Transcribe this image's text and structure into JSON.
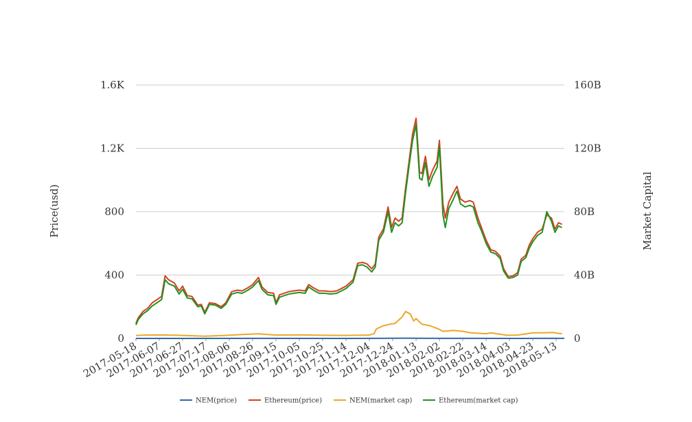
{
  "chart_data": {
    "type": "line",
    "title": "",
    "x_dates": [
      "2017-05-18",
      "2017-06-07",
      "2017-06-27",
      "2017-07-17",
      "2017-08-06",
      "2017-08-26",
      "2017-09-15",
      "2017-10-05",
      "2017-10-25",
      "2017-11-14",
      "2017-12-04",
      "2017-12-24",
      "2018-01-13",
      "2018-02-02",
      "2018-02-22",
      "2018-03-14",
      "2018-04-03",
      "2018-04-23",
      "2018-05-13"
    ],
    "x_range": [
      "2017-05-18",
      "2018-05-20"
    ],
    "left_axis": {
      "label": "Price(usd)",
      "ylim": [
        0,
        1600
      ],
      "ticks": [
        0,
        400,
        800,
        1200,
        1600
      ],
      "tick_labels": [
        "0",
        "400",
        "800",
        "1.2K",
        "1.6K"
      ]
    },
    "right_axis": {
      "label": "Market Capital",
      "ylim": [
        0,
        160
      ],
      "unit": "B",
      "ticks": [
        0,
        40,
        80,
        120,
        160
      ],
      "tick_labels": [
        "0",
        "40B",
        "80B",
        "120B",
        "160B"
      ]
    },
    "grid": true,
    "legend_position": "bottom",
    "series": [
      {
        "name": "NEM(price)",
        "axis": "left",
        "color": "#2f6aa6",
        "points": [
          [
            "2017-05-18",
            0.2
          ],
          [
            "2017-07-01",
            0.18
          ],
          [
            "2017-09-01",
            0.3
          ],
          [
            "2017-11-01",
            0.2
          ],
          [
            "2017-12-10",
            0.3
          ],
          [
            "2017-12-24",
            0.9
          ],
          [
            "2018-01-05",
            1.6
          ],
          [
            "2018-01-13",
            1.3
          ],
          [
            "2018-02-02",
            0.6
          ],
          [
            "2018-03-01",
            0.4
          ],
          [
            "2018-04-06",
            0.2
          ],
          [
            "2018-05-01",
            0.4
          ],
          [
            "2018-05-20",
            0.3
          ]
        ]
      },
      {
        "name": "Ethereum(price)",
        "axis": "left",
        "color": "#d4411f",
        "points": [
          [
            "2017-05-18",
            95
          ],
          [
            "2017-05-20",
            130
          ],
          [
            "2017-05-24",
            170
          ],
          [
            "2017-05-28",
            190
          ],
          [
            "2017-06-01",
            225
          ],
          [
            "2017-06-06",
            250
          ],
          [
            "2017-06-09",
            265
          ],
          [
            "2017-06-12",
            395
          ],
          [
            "2017-06-15",
            370
          ],
          [
            "2017-06-20",
            350
          ],
          [
            "2017-06-24",
            300
          ],
          [
            "2017-06-27",
            330
          ],
          [
            "2017-07-01",
            270
          ],
          [
            "2017-07-05",
            265
          ],
          [
            "2017-07-10",
            210
          ],
          [
            "2017-07-13",
            215
          ],
          [
            "2017-07-16",
            165
          ],
          [
            "2017-07-20",
            225
          ],
          [
            "2017-07-25",
            220
          ],
          [
            "2017-07-30",
            200
          ],
          [
            "2017-08-03",
            225
          ],
          [
            "2017-08-08",
            295
          ],
          [
            "2017-08-13",
            305
          ],
          [
            "2017-08-17",
            300
          ],
          [
            "2017-08-22",
            320
          ],
          [
            "2017-08-26",
            340
          ],
          [
            "2017-08-31",
            385
          ],
          [
            "2017-09-03",
            325
          ],
          [
            "2017-09-08",
            290
          ],
          [
            "2017-09-13",
            285
          ],
          [
            "2017-09-15",
            225
          ],
          [
            "2017-09-18",
            275
          ],
          [
            "2017-09-22",
            285
          ],
          [
            "2017-09-26",
            295
          ],
          [
            "2017-09-30",
            300
          ],
          [
            "2017-10-05",
            305
          ],
          [
            "2017-10-10",
            300
          ],
          [
            "2017-10-13",
            340
          ],
          [
            "2017-10-17",
            320
          ],
          [
            "2017-10-22",
            300
          ],
          [
            "2017-10-27",
            300
          ],
          [
            "2017-11-01",
            295
          ],
          [
            "2017-11-06",
            300
          ],
          [
            "2017-11-10",
            315
          ],
          [
            "2017-11-14",
            330
          ],
          [
            "2017-11-20",
            370
          ],
          [
            "2017-11-24",
            475
          ],
          [
            "2017-11-28",
            480
          ],
          [
            "2017-12-02",
            470
          ],
          [
            "2017-12-06",
            440
          ],
          [
            "2017-12-09",
            470
          ],
          [
            "2017-12-12",
            640
          ],
          [
            "2017-12-16",
            690
          ],
          [
            "2017-12-20",
            830
          ],
          [
            "2017-12-23",
            700
          ],
          [
            "2017-12-26",
            760
          ],
          [
            "2017-12-29",
            740
          ],
          [
            "2018-01-01",
            760
          ],
          [
            "2018-01-04",
            950
          ],
          [
            "2018-01-07",
            1120
          ],
          [
            "2018-01-10",
            1290
          ],
          [
            "2018-01-13",
            1390
          ],
          [
            "2018-01-16",
            1050
          ],
          [
            "2018-01-18",
            1040
          ],
          [
            "2018-01-21",
            1150
          ],
          [
            "2018-01-24",
            1000
          ],
          [
            "2018-01-27",
            1060
          ],
          [
            "2018-01-31",
            1120
          ],
          [
            "2018-02-02",
            1250
          ],
          [
            "2018-02-05",
            850
          ],
          [
            "2018-02-07",
            760
          ],
          [
            "2018-02-10",
            860
          ],
          [
            "2018-02-14",
            920
          ],
          [
            "2018-02-17",
            960
          ],
          [
            "2018-02-20",
            880
          ],
          [
            "2018-02-24",
            860
          ],
          [
            "2018-02-28",
            870
          ],
          [
            "2018-03-03",
            860
          ],
          [
            "2018-03-07",
            760
          ],
          [
            "2018-03-10",
            700
          ],
          [
            "2018-03-14",
            620
          ],
          [
            "2018-03-18",
            560
          ],
          [
            "2018-03-22",
            550
          ],
          [
            "2018-03-26",
            520
          ],
          [
            "2018-03-29",
            440
          ],
          [
            "2018-04-02",
            390
          ],
          [
            "2018-04-06",
            395
          ],
          [
            "2018-04-10",
            415
          ],
          [
            "2018-04-13",
            500
          ],
          [
            "2018-04-17",
            525
          ],
          [
            "2018-04-20",
            590
          ],
          [
            "2018-04-23",
            630
          ],
          [
            "2018-04-27",
            670
          ],
          [
            "2018-05-01",
            690
          ],
          [
            "2018-05-05",
            780
          ],
          [
            "2018-05-09",
            760
          ],
          [
            "2018-05-12",
            690
          ],
          [
            "2018-05-15",
            730
          ],
          [
            "2018-05-18",
            720
          ]
        ]
      },
      {
        "name": "NEM(market cap)",
        "axis": "right",
        "color": "#eca727",
        "points": [
          [
            "2017-05-18",
            1.8
          ],
          [
            "2017-05-25",
            2.1
          ],
          [
            "2017-06-10",
            2.2
          ],
          [
            "2017-06-27",
            1.9
          ],
          [
            "2017-07-16",
            1.4
          ],
          [
            "2017-08-01",
            1.8
          ],
          [
            "2017-08-20",
            2.6
          ],
          [
            "2017-08-31",
            2.9
          ],
          [
            "2017-09-15",
            2.1
          ],
          [
            "2017-10-05",
            2.2
          ],
          [
            "2017-10-25",
            2.0
          ],
          [
            "2017-11-14",
            1.9
          ],
          [
            "2017-12-04",
            2.1
          ],
          [
            "2017-12-08",
            3.0
          ],
          [
            "2017-12-10",
            6.0
          ],
          [
            "2017-12-16",
            8.0
          ],
          [
            "2017-12-22",
            9.0
          ],
          [
            "2017-12-26",
            9.5
          ],
          [
            "2018-01-01",
            13.5
          ],
          [
            "2018-01-04",
            17.0
          ],
          [
            "2018-01-08",
            15.5
          ],
          [
            "2018-01-11",
            11.0
          ],
          [
            "2018-01-13",
            12.5
          ],
          [
            "2018-01-18",
            9.0
          ],
          [
            "2018-01-25",
            8.0
          ],
          [
            "2018-02-01",
            6.0
          ],
          [
            "2018-02-05",
            4.5
          ],
          [
            "2018-02-14",
            5.0
          ],
          [
            "2018-02-22",
            4.5
          ],
          [
            "2018-03-01",
            3.5
          ],
          [
            "2018-03-14",
            3.0
          ],
          [
            "2018-03-18",
            3.5
          ],
          [
            "2018-04-01",
            2.0
          ],
          [
            "2018-04-10",
            2.1
          ],
          [
            "2018-04-23",
            3.5
          ],
          [
            "2018-05-01",
            3.6
          ],
          [
            "2018-05-10",
            3.7
          ],
          [
            "2018-05-15",
            3.2
          ],
          [
            "2018-05-18",
            3.0
          ]
        ]
      },
      {
        "name": "Ethereum(market cap)",
        "axis": "right",
        "color": "#239121",
        "points": [
          [
            "2017-05-18",
            8.5
          ],
          [
            "2017-05-20",
            12.0
          ],
          [
            "2017-05-24",
            15.5
          ],
          [
            "2017-05-28",
            17.5
          ],
          [
            "2017-06-01",
            20.5
          ],
          [
            "2017-06-06",
            23.0
          ],
          [
            "2017-06-09",
            24.5
          ],
          [
            "2017-06-12",
            37.0
          ],
          [
            "2017-06-15",
            34.5
          ],
          [
            "2017-06-20",
            33.0
          ],
          [
            "2017-06-24",
            28.0
          ],
          [
            "2017-06-27",
            31.0
          ],
          [
            "2017-07-01",
            25.5
          ],
          [
            "2017-07-05",
            25.0
          ],
          [
            "2017-07-10",
            20.0
          ],
          [
            "2017-07-13",
            20.5
          ],
          [
            "2017-07-16",
            15.5
          ],
          [
            "2017-07-20",
            21.5
          ],
          [
            "2017-07-25",
            21.0
          ],
          [
            "2017-07-30",
            19.0
          ],
          [
            "2017-08-03",
            21.5
          ],
          [
            "2017-08-08",
            28.0
          ],
          [
            "2017-08-13",
            29.0
          ],
          [
            "2017-08-17",
            28.5
          ],
          [
            "2017-08-22",
            30.5
          ],
          [
            "2017-08-26",
            32.5
          ],
          [
            "2017-08-31",
            36.5
          ],
          [
            "2017-09-03",
            31.0
          ],
          [
            "2017-09-08",
            27.5
          ],
          [
            "2017-09-13",
            27.0
          ],
          [
            "2017-09-15",
            21.5
          ],
          [
            "2017-09-18",
            26.0
          ],
          [
            "2017-09-22",
            27.0
          ],
          [
            "2017-09-26",
            28.0
          ],
          [
            "2017-09-30",
            28.5
          ],
          [
            "2017-10-05",
            29.0
          ],
          [
            "2017-10-10",
            28.5
          ],
          [
            "2017-10-13",
            32.5
          ],
          [
            "2017-10-17",
            30.5
          ],
          [
            "2017-10-22",
            28.5
          ],
          [
            "2017-10-27",
            28.5
          ],
          [
            "2017-11-01",
            28.0
          ],
          [
            "2017-11-06",
            28.5
          ],
          [
            "2017-11-10",
            30.0
          ],
          [
            "2017-11-14",
            31.5
          ],
          [
            "2017-11-20",
            35.5
          ],
          [
            "2017-11-24",
            46.0
          ],
          [
            "2017-11-28",
            46.5
          ],
          [
            "2017-12-02",
            45.0
          ],
          [
            "2017-12-06",
            42.0
          ],
          [
            "2017-12-09",
            45.0
          ],
          [
            "2017-12-12",
            62.0
          ],
          [
            "2017-12-16",
            67.0
          ],
          [
            "2017-12-20",
            80.0
          ],
          [
            "2017-12-23",
            67.0
          ],
          [
            "2017-12-26",
            73.0
          ],
          [
            "2017-12-29",
            71.0
          ],
          [
            "2018-01-01",
            73.0
          ],
          [
            "2018-01-04",
            92.0
          ],
          [
            "2018-01-07",
            109.0
          ],
          [
            "2018-01-10",
            125.0
          ],
          [
            "2018-01-13",
            135.0
          ],
          [
            "2018-01-16",
            101.0
          ],
          [
            "2018-01-18",
            100.0
          ],
          [
            "2018-01-21",
            111.0
          ],
          [
            "2018-01-24",
            96.0
          ],
          [
            "2018-01-27",
            102.0
          ],
          [
            "2018-01-31",
            108.0
          ],
          [
            "2018-02-02",
            121.0
          ],
          [
            "2018-02-05",
            78.0
          ],
          [
            "2018-02-07",
            70.0
          ],
          [
            "2018-02-10",
            82.0
          ],
          [
            "2018-02-14",
            88.0
          ],
          [
            "2018-02-17",
            93.0
          ],
          [
            "2018-02-20",
            85.0
          ],
          [
            "2018-02-24",
            83.0
          ],
          [
            "2018-02-28",
            84.0
          ],
          [
            "2018-03-03",
            83.0
          ],
          [
            "2018-03-07",
            73.0
          ],
          [
            "2018-03-10",
            68.0
          ],
          [
            "2018-03-14",
            60.0
          ],
          [
            "2018-03-18",
            54.5
          ],
          [
            "2018-03-22",
            53.5
          ],
          [
            "2018-03-26",
            50.5
          ],
          [
            "2018-03-29",
            42.5
          ],
          [
            "2018-04-02",
            38.0
          ],
          [
            "2018-04-06",
            38.5
          ],
          [
            "2018-04-10",
            40.0
          ],
          [
            "2018-04-13",
            48.5
          ],
          [
            "2018-04-17",
            51.0
          ],
          [
            "2018-04-20",
            57.0
          ],
          [
            "2018-04-23",
            61.0
          ],
          [
            "2018-04-27",
            65.0
          ],
          [
            "2018-05-01",
            67.0
          ],
          [
            "2018-05-05",
            80.0
          ],
          [
            "2018-05-09",
            74.0
          ],
          [
            "2018-05-12",
            67.0
          ],
          [
            "2018-05-15",
            71.0
          ],
          [
            "2018-05-18",
            70.0
          ]
        ]
      }
    ]
  }
}
